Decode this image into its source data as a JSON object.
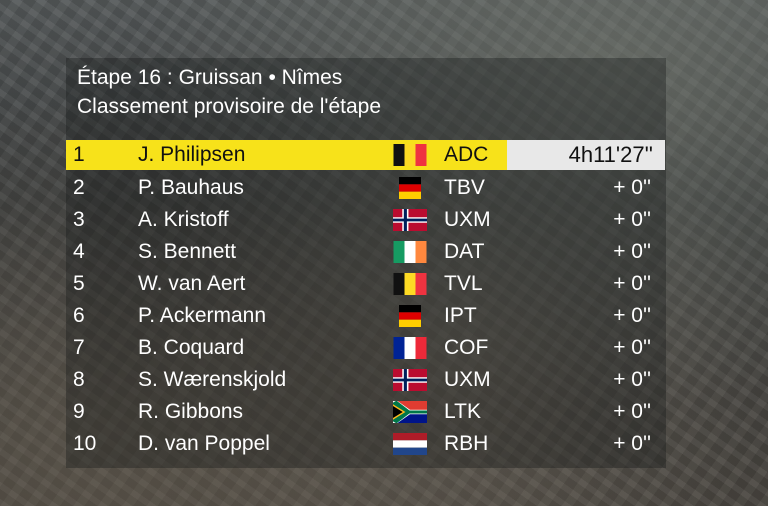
{
  "header": {
    "line1": "Étape 16 : Gruissan • Nîmes",
    "line2": "Classement provisoire de l'étape"
  },
  "rows": [
    {
      "rank": "1",
      "name": "J. Philipsen",
      "flag": "belgium-flag-icon",
      "team": "ADC",
      "time": "4h11'27''"
    },
    {
      "rank": "2",
      "name": "P. Bauhaus",
      "flag": "germany-flag-icon",
      "team": "TBV",
      "time": "+ 0''"
    },
    {
      "rank": "3",
      "name": "A. Kristoff",
      "flag": "norway-flag-icon",
      "team": "UXM",
      "time": "+ 0''"
    },
    {
      "rank": "4",
      "name": "S. Bennett",
      "flag": "ireland-flag-icon",
      "team": "DAT",
      "time": "+ 0''"
    },
    {
      "rank": "5",
      "name": "W. van Aert",
      "flag": "belgium-flag-icon",
      "team": "TVL",
      "time": "+ 0''"
    },
    {
      "rank": "6",
      "name": "P. Ackermann",
      "flag": "germany-flag-icon",
      "team": "IPT",
      "time": "+ 0''"
    },
    {
      "rank": "7",
      "name": "B. Coquard",
      "flag": "france-flag-icon",
      "team": "COF",
      "time": "+ 0''"
    },
    {
      "rank": "8",
      "name": "S. Wærenskjold",
      "flag": "norway-flag-icon",
      "team": "UXM",
      "time": "+ 0''"
    },
    {
      "rank": "9",
      "name": "R. Gibbons",
      "flag": "south-africa-flag-icon",
      "team": "LTK",
      "time": "+ 0''"
    },
    {
      "rank": "10",
      "name": "D. van Poppel",
      "flag": "netherlands-flag-icon",
      "team": "RBH",
      "time": "+ 0''"
    }
  ],
  "colors": {
    "leader_bar": "#f7e21a",
    "leader_time_bg": "#e8e8e8",
    "text": "#ffffff"
  }
}
